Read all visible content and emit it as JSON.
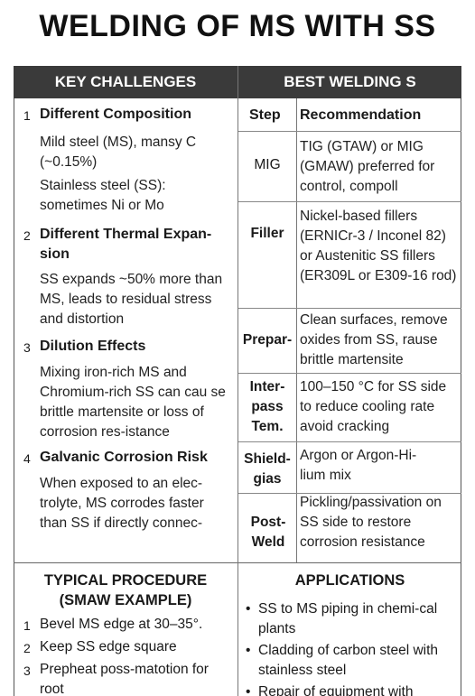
{
  "title": "WELDING OF MS WITH SS",
  "left_header": "KEY CHALLENGES",
  "right_header": "BEST WELDING S",
  "challenges": [
    {
      "num": "1",
      "title": "Different Composition",
      "body": [
        "Mild steel (MS), mansy C (~0.15%)",
        "Stainless steel (SS): sometimes Ni or Mo"
      ]
    },
    {
      "num": "2",
      "title": "Different Thermal Expan-sion",
      "body": [
        "SS expands ~50% more than MS, leads to residual stress and distortion"
      ]
    },
    {
      "num": "3",
      "title": "Dilution Effects",
      "body": [
        "Mixing iron-rich MS and Chromium-rich SS can cau se brittle martensite or loss of corrosion res-istance"
      ]
    },
    {
      "num": "4",
      "title": "Galvanic Corrosion Risk",
      "body": [
        "When exposed to an elec-trolyte, MS corrodes faster than SS if directly connec-"
      ]
    }
  ],
  "table": {
    "col_step": "Step",
    "col_rec": "Recommendation",
    "rows": [
      {
        "step": "MIG",
        "rec": "TIG (GTAW) or MIG (GMAW) preferred for control, compoll"
      },
      {
        "step": "Filler",
        "rec": "Nickel-based fillers (ERNICr-3 / Inconel 82) or Austenitic SS fillers (ER309L or E309-16 rod)"
      },
      {
        "step": "Prepar-",
        "rec": "Clean surfaces, remove oxides from SS, rause brittle martensite"
      },
      {
        "step": "Inter-pass Tem.",
        "rec": "100–150 °C for SS side to reduce cooling rate avoid cracking"
      },
      {
        "step": "Shield-gias",
        "rec": "Argon or Argon-Hi-lium mix"
      },
      {
        "step": "Post-Weld",
        "rec": "Pickling/passivation on SS side to restore corrosion resistance"
      }
    ]
  },
  "procedure": {
    "title_line1": "TYPICAL PROCEDURE",
    "title_line2": "(SMAW EXAMPLE)",
    "steps": [
      {
        "num": "1",
        "text": "Bevel MS edge at 30–35°."
      },
      {
        "num": "2",
        "text": "Keep SS edge square"
      },
      {
        "num": "3",
        "text": "Prepheat poss-matotion for root"
      }
    ]
  },
  "applications": {
    "title": "APPLICATIONS",
    "items": [
      "SS to MS piping in chemi-cal plants",
      "Cladding of carbon steel with stainless steel",
      "Repair of equipment with"
    ]
  },
  "colors": {
    "header_bg": "#3a3a3a",
    "header_text": "#ffffff",
    "rule": "#888888"
  }
}
